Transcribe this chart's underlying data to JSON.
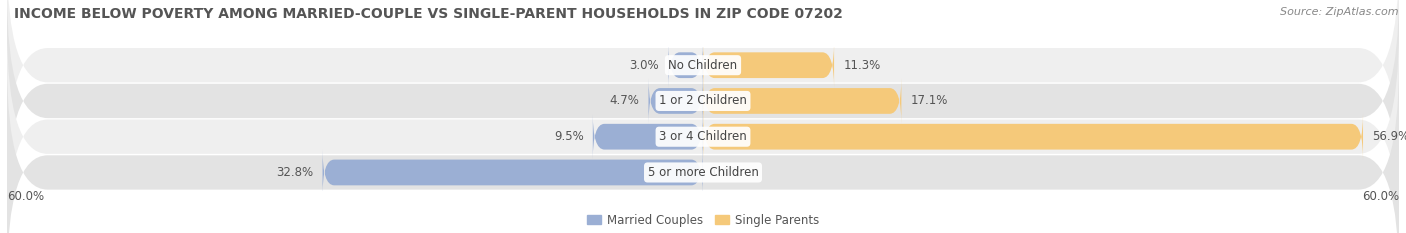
{
  "title": "INCOME BELOW POVERTY AMONG MARRIED-COUPLE VS SINGLE-PARENT HOUSEHOLDS IN ZIP CODE 07202",
  "source": "Source: ZipAtlas.com",
  "categories": [
    "No Children",
    "1 or 2 Children",
    "3 or 4 Children",
    "5 or more Children"
  ],
  "married_values": [
    3.0,
    4.7,
    9.5,
    32.8
  ],
  "single_values": [
    11.3,
    17.1,
    56.9,
    0.0
  ],
  "married_color": "#9BAFD4",
  "single_color": "#F5C97A",
  "row_bg_light": "#EFEFEF",
  "row_bg_dark": "#E3E3E3",
  "axis_limit": 60.0,
  "axis_label_left": "60.0%",
  "axis_label_right": "60.0%",
  "legend_married": "Married Couples",
  "legend_single": "Single Parents",
  "title_fontsize": 10,
  "source_fontsize": 8,
  "bar_height": 0.72,
  "label_fontsize": 8.5,
  "category_fontsize": 8.5,
  "label_color": "#555555",
  "category_color": "#444444",
  "title_color": "#555555",
  "source_color": "#888888"
}
